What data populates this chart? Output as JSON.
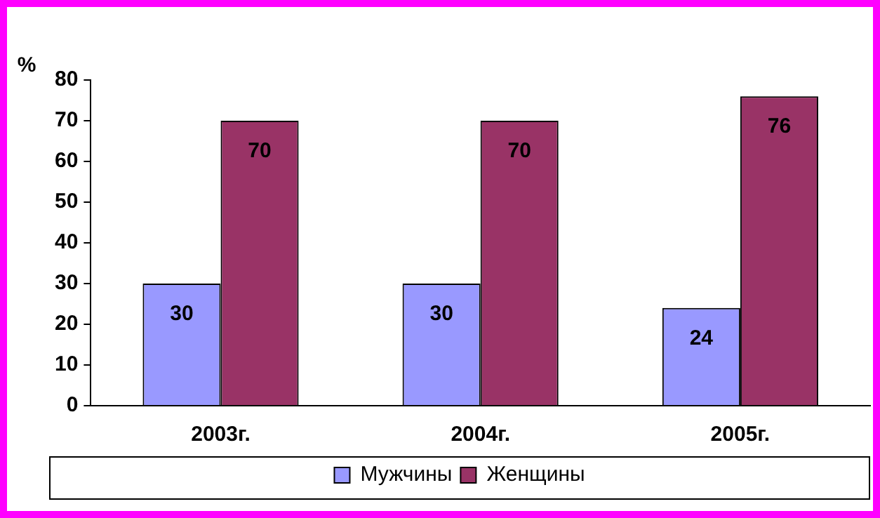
{
  "chart_data": {
    "type": "bar",
    "ylabel": "%",
    "categories": [
      "2003г.",
      "2004г.",
      "2005г."
    ],
    "series": [
      {
        "name": "Мужчины",
        "color": "#9999ff",
        "values": [
          30,
          30,
          24
        ]
      },
      {
        "name": "Женщины",
        "color": "#993366",
        "values": [
          70,
          70,
          76
        ]
      }
    ],
    "ylim": [
      0,
      80
    ],
    "yticks": [
      0,
      10,
      20,
      30,
      40,
      50,
      60,
      70,
      80
    ],
    "grid": false,
    "legend": "bottom",
    "data_labels": true
  }
}
